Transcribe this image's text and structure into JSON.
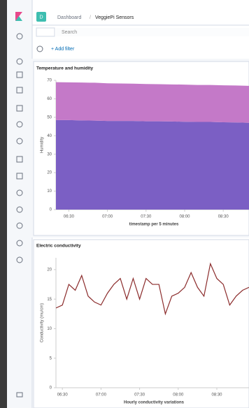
{
  "header": {
    "badge": "D",
    "breadcrumb": [
      "Dashboard",
      "VeggiePi Sensors"
    ],
    "separator": "/"
  },
  "search": {
    "placeholder": "Search",
    "add_filter": "+ Add filter"
  },
  "chart_data": [
    {
      "type": "area",
      "stacked": true,
      "title": "Temperature and humidity",
      "ylabel": "Humidity",
      "xlabel": "timestamp per 5 minutes",
      "x": [
        "06:20",
        "06:30",
        "06:40",
        "06:50",
        "07:00",
        "07:10",
        "07:20",
        "07:30",
        "07:40",
        "07:50",
        "08:00",
        "08:10",
        "08:20",
        "08:30",
        "08:40",
        "08:50"
      ],
      "series": [
        {
          "color": "#7b5fc4",
          "values": [
            48.5,
            48.5,
            48.3,
            48.2,
            48,
            48,
            48,
            47.8,
            47.8,
            47.7,
            47.6,
            47.5,
            47.5,
            47.3,
            47.2,
            47
          ]
        },
        {
          "color": "#c479c8",
          "values": [
            20.5,
            20.4,
            20.5,
            20.5,
            20.4,
            20.3,
            20.2,
            20.2,
            20.1,
            20.1,
            20.1,
            20,
            20,
            20,
            20,
            20
          ]
        }
      ],
      "xlim": [
        "06:20",
        "08:50"
      ],
      "xticks": [
        "06:30",
        "07:00",
        "07:30",
        "08:00",
        "08:30"
      ],
      "ylim": [
        0,
        70
      ],
      "yticks": [
        0,
        10,
        20,
        30,
        40,
        50,
        60,
        70
      ]
    },
    {
      "type": "line",
      "title": "Electric conductivity",
      "ylabel": "Conductivity (mu/cm)",
      "xlabel": "Hourly conductivity variations",
      "x": [
        "06:25",
        "06:30",
        "06:35",
        "06:40",
        "06:45",
        "06:50",
        "06:55",
        "07:00",
        "07:05",
        "07:10",
        "07:15",
        "07:20",
        "07:25",
        "07:30",
        "07:35",
        "07:40",
        "07:45",
        "07:50",
        "07:55",
        "08:00",
        "08:05",
        "08:10",
        "08:15",
        "08:20",
        "08:25",
        "08:30",
        "08:35",
        "08:40",
        "08:45",
        "08:50",
        "08:55"
      ],
      "series": [
        {
          "color": "#8b2b2b",
          "values": [
            13.5,
            14,
            17.5,
            16.5,
            19,
            15.5,
            14.5,
            14,
            16,
            17.5,
            18.5,
            15,
            18.5,
            15,
            18.5,
            17.5,
            17.5,
            12.5,
            15.5,
            16,
            17,
            19.5,
            17,
            15.5,
            21,
            18.5,
            17.5,
            14,
            15.5,
            16.5,
            17
          ]
        }
      ],
      "xlim": [
        "06:25",
        "08:55"
      ],
      "xticks": [
        "06:30",
        "07:00",
        "07:30",
        "08:00",
        "08:30"
      ],
      "ylim": [
        0,
        22
      ],
      "yticks": [
        0,
        5,
        10,
        15,
        20
      ]
    }
  ]
}
